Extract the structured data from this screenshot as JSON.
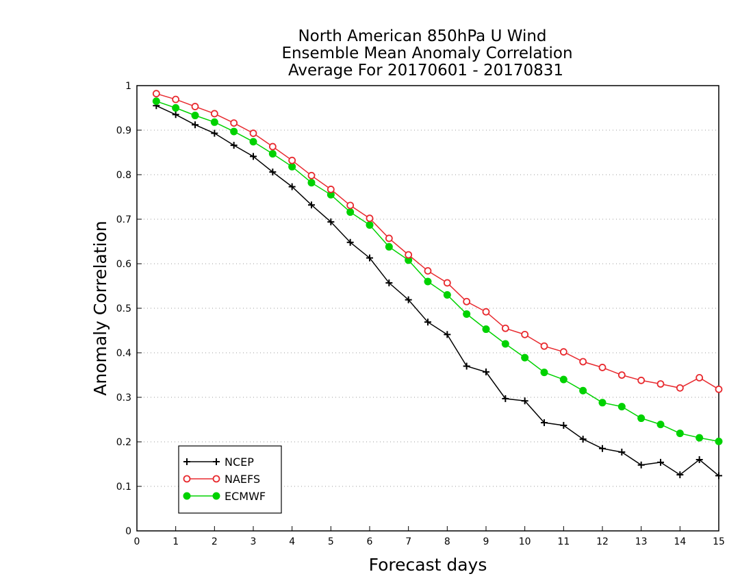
{
  "chart_data": {
    "type": "line",
    "title": [
      "North American 850hPa U Wind",
      "Ensemble Mean Anomaly Correlation",
      "Average For 20170601 - 20170831"
    ],
    "xlabel": "Forecast days",
    "ylabel": "Anomaly Correlation",
    "xlim": [
      0,
      15
    ],
    "ylim": [
      0,
      1
    ],
    "xticks": [
      0,
      1,
      2,
      3,
      4,
      5,
      6,
      7,
      8,
      9,
      10,
      11,
      12,
      13,
      14,
      15
    ],
    "yticks": [
      0,
      0.1,
      0.2,
      0.3,
      0.4,
      0.5,
      0.6,
      0.7,
      0.8,
      0.9,
      1
    ],
    "ytick_labels": [
      "0",
      "0.1",
      "0.2",
      "0.3",
      "0.4",
      "0.5",
      "0.6",
      "0.7",
      "0.8",
      "0.9",
      "1"
    ],
    "grid": true,
    "legend_position": "bottom-left",
    "x": [
      0.5,
      1,
      1.5,
      2,
      2.5,
      3,
      3.5,
      4,
      4.5,
      5,
      5.5,
      6,
      6.5,
      7,
      7.5,
      8,
      8.5,
      9,
      9.5,
      10,
      10.5,
      11,
      11.5,
      12,
      12.5,
      13,
      13.5,
      14,
      14.5,
      15
    ],
    "series": [
      {
        "name": "NCEP",
        "marker": "plus",
        "color": "#000000",
        "values": [
          0.955,
          0.935,
          0.912,
          0.893,
          0.866,
          0.841,
          0.806,
          0.773,
          0.732,
          0.694,
          0.648,
          0.613,
          0.557,
          0.519,
          0.469,
          0.441,
          0.37,
          0.357,
          0.297,
          0.292,
          0.243,
          0.237,
          0.206,
          0.185,
          0.177,
          0.148,
          0.154,
          0.126,
          0.16,
          0.124
        ]
      },
      {
        "name": "NAEFS",
        "marker": "open-circle",
        "color": "#e8292e",
        "values": [
          0.982,
          0.969,
          0.953,
          0.937,
          0.916,
          0.893,
          0.863,
          0.832,
          0.798,
          0.767,
          0.731,
          0.702,
          0.657,
          0.62,
          0.584,
          0.557,
          0.515,
          0.492,
          0.455,
          0.441,
          0.415,
          0.402,
          0.38,
          0.367,
          0.35,
          0.338,
          0.33,
          0.321,
          0.344,
          0.318
        ]
      },
      {
        "name": "ECMWF",
        "marker": "filled-circle",
        "color": "#00d200",
        "values": [
          0.965,
          0.95,
          0.933,
          0.918,
          0.897,
          0.874,
          0.847,
          0.818,
          0.782,
          0.755,
          0.716,
          0.687,
          0.638,
          0.608,
          0.56,
          0.53,
          0.487,
          0.453,
          0.42,
          0.389,
          0.356,
          0.34,
          0.315,
          0.288,
          0.279,
          0.253,
          0.239,
          0.219,
          0.209,
          0.201
        ]
      }
    ]
  }
}
